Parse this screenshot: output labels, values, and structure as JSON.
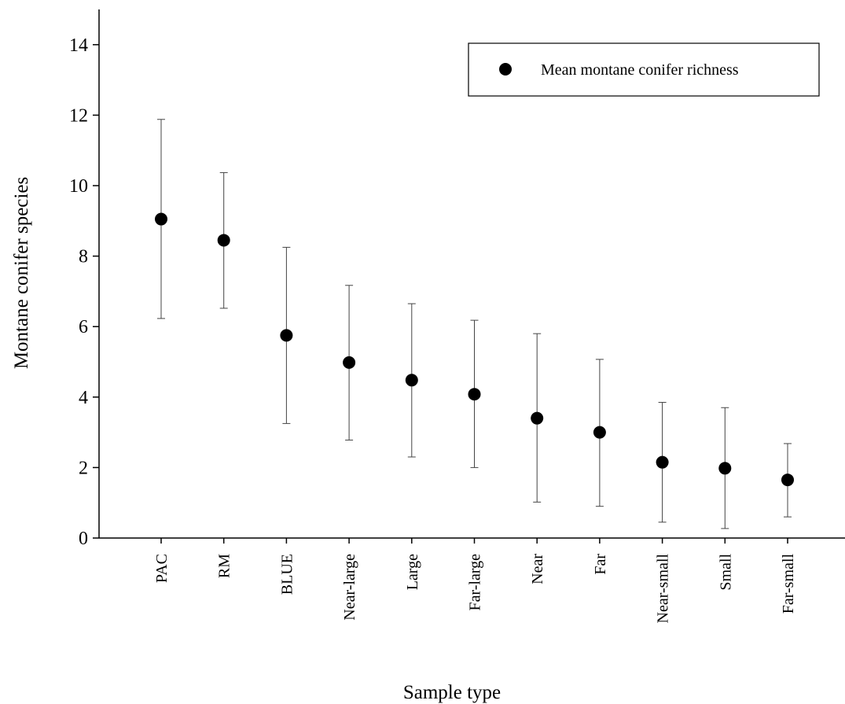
{
  "chart_data": {
    "type": "scatter",
    "title": "",
    "xlabel": "Sample type",
    "ylabel": "Montane conifer species",
    "ylim": [
      0,
      15
    ],
    "yticks": [
      0,
      2,
      4,
      6,
      8,
      10,
      12,
      14
    ],
    "grid": false,
    "legend_position": "top-right",
    "categories": [
      "PAC",
      "RM",
      "BLUE",
      "Near-large",
      "Large",
      "Far-large",
      "Near",
      "Far",
      "Near-small",
      "Small",
      "Far-small"
    ],
    "series": [
      {
        "name": "Mean montane conifer richness",
        "values": [
          9.05,
          8.45,
          5.75,
          4.98,
          4.48,
          4.08,
          3.4,
          3.0,
          2.15,
          1.98,
          1.65
        ],
        "error_upper": [
          11.88,
          10.37,
          8.25,
          7.17,
          6.65,
          6.18,
          5.8,
          5.07,
          3.85,
          3.7,
          2.68
        ],
        "error_lower": [
          6.23,
          6.52,
          3.25,
          2.78,
          2.3,
          2.0,
          1.02,
          0.9,
          0.45,
          0.27,
          0.6
        ],
        "color": "#000000"
      }
    ]
  }
}
